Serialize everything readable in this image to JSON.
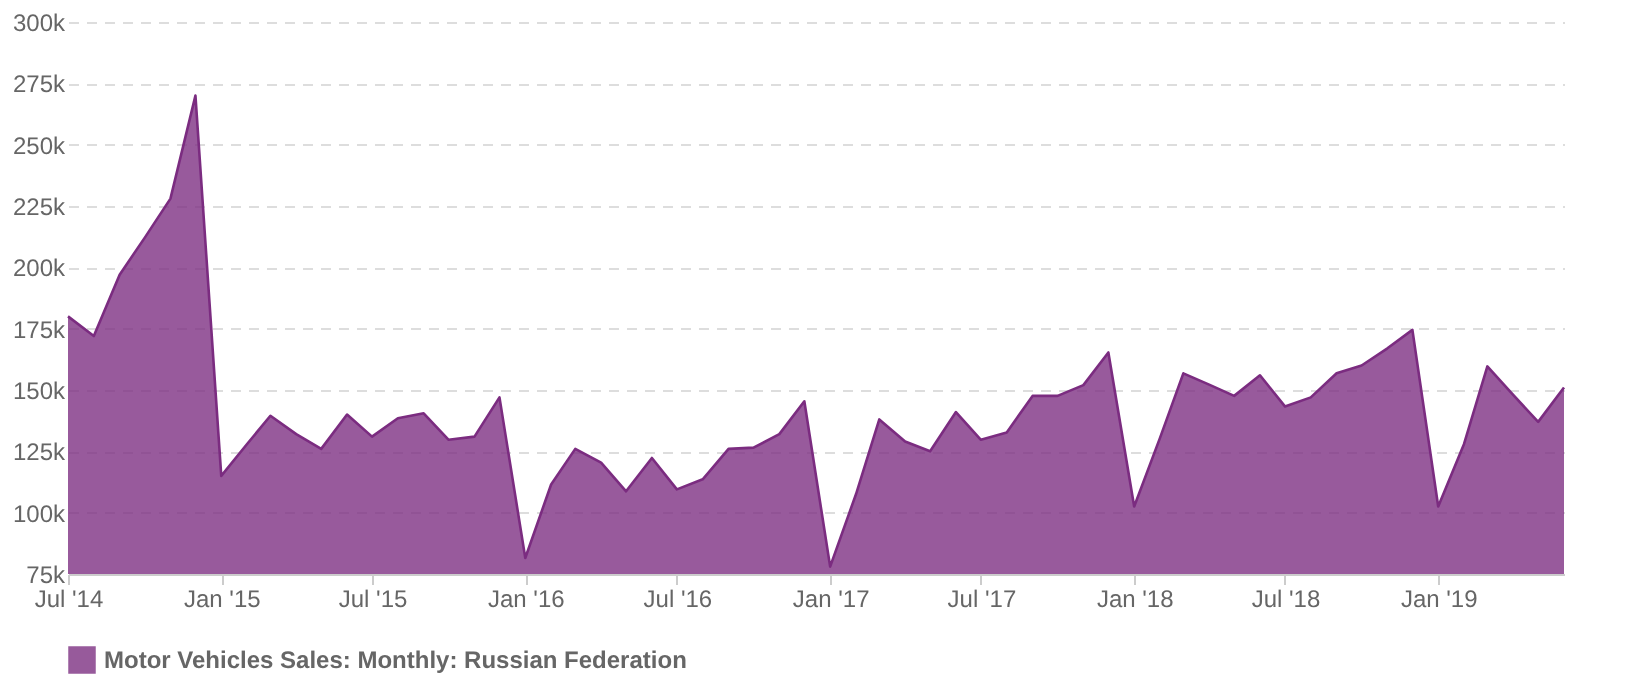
{
  "chart_data": {
    "type": "area",
    "x": [
      "2014-07",
      "2014-08",
      "2014-09",
      "2014-10",
      "2014-11",
      "2014-12",
      "2015-01",
      "2015-02",
      "2015-03",
      "2015-04",
      "2015-05",
      "2015-06",
      "2015-07",
      "2015-08",
      "2015-09",
      "2015-10",
      "2015-11",
      "2015-12",
      "2016-01",
      "2016-02",
      "2016-03",
      "2016-04",
      "2016-05",
      "2016-06",
      "2016-07",
      "2016-08",
      "2016-09",
      "2016-10",
      "2016-11",
      "2016-12",
      "2017-01",
      "2017-02",
      "2017-03",
      "2017-04",
      "2017-05",
      "2017-06",
      "2017-07",
      "2017-08",
      "2017-09",
      "2017-10",
      "2017-11",
      "2017-12",
      "2018-01",
      "2018-02",
      "2018-03",
      "2018-04",
      "2018-05",
      "2018-06",
      "2018-07",
      "2018-08",
      "2018-09",
      "2018-10",
      "2018-11",
      "2018-12",
      "2019-01",
      "2019-02",
      "2019-03",
      "2019-04",
      "2019-05",
      "2019-06"
    ],
    "series": [
      {
        "name": "Motor Vehicles Sales: Monthly: Russian Federation",
        "color": "#7b2c80",
        "values": [
          180000,
          172000,
          197000,
          212000,
          228000,
          270000,
          115000,
          128000,
          139500,
          132000,
          126000,
          140000,
          131000,
          138500,
          140500,
          129700,
          131000,
          147000,
          81500,
          111500,
          126000,
          120400,
          108700,
          122300,
          109500,
          113600,
          126000,
          126500,
          132000,
          145400,
          78000,
          107500,
          138000,
          129000,
          125000,
          141000,
          129700,
          132700,
          147600,
          147600,
          152000,
          165300,
          102500,
          130500,
          156800,
          152200,
          147600,
          156000,
          143300,
          147000,
          156800,
          160000,
          167000,
          174500,
          102500,
          128000,
          159600,
          148000,
          137000,
          151000
        ]
      }
    ],
    "xlim": [
      "2014-07",
      "2019-06"
    ],
    "xticks": [
      {
        "value": "2014-07",
        "label": "Jul '14"
      },
      {
        "value": "2015-01",
        "label": "Jan '15"
      },
      {
        "value": "2015-07",
        "label": "Jul '15"
      },
      {
        "value": "2016-01",
        "label": "Jan '16"
      },
      {
        "value": "2016-07",
        "label": "Jul '16"
      },
      {
        "value": "2017-01",
        "label": "Jan '17"
      },
      {
        "value": "2017-07",
        "label": "Jul '17"
      },
      {
        "value": "2018-01",
        "label": "Jan '18"
      },
      {
        "value": "2018-07",
        "label": "Jul '18"
      },
      {
        "value": "2019-01",
        "label": "Jan '19"
      }
    ],
    "ylim": [
      75000,
      300000
    ],
    "yticks": [
      {
        "value": 75000,
        "label": "75k"
      },
      {
        "value": 100000,
        "label": "100k"
      },
      {
        "value": 125000,
        "label": "125k"
      },
      {
        "value": 150000,
        "label": "150k"
      },
      {
        "value": 175000,
        "label": "175k"
      },
      {
        "value": 200000,
        "label": "200k"
      },
      {
        "value": 225000,
        "label": "225k"
      },
      {
        "value": 250000,
        "label": "250k"
      },
      {
        "value": 275000,
        "label": "275k"
      },
      {
        "value": 300000,
        "label": "300k"
      }
    ],
    "grid": "y",
    "legend": "bottom"
  }
}
